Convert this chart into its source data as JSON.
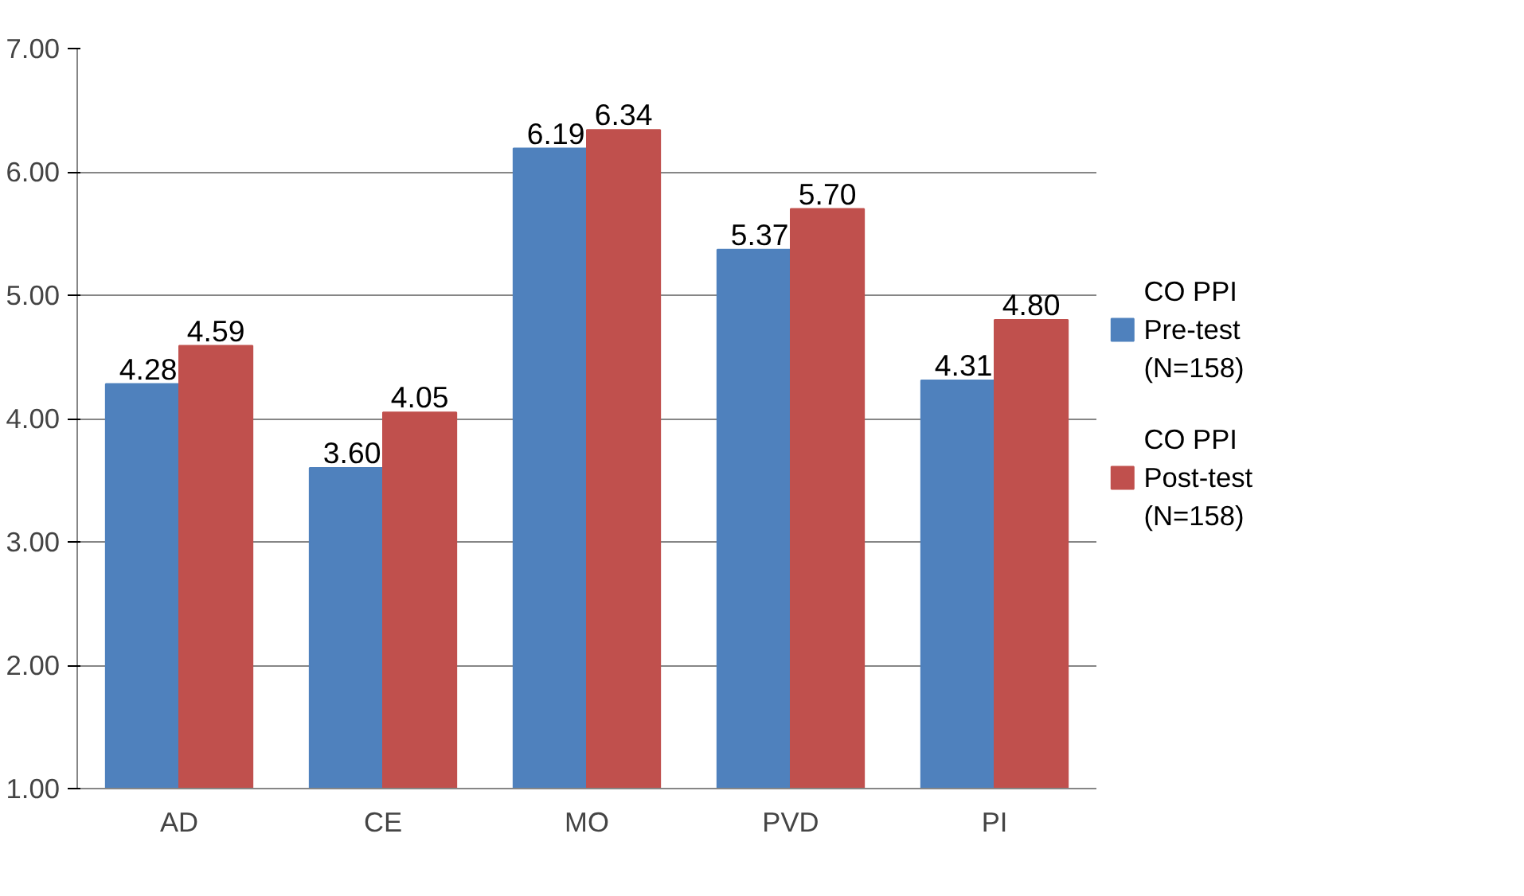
{
  "chart_data": {
    "type": "bar",
    "categories": [
      "AD",
      "CE",
      "MO",
      "PVD",
      "PI"
    ],
    "series": [
      {
        "name": "CO PPI Pre-test (N=158)",
        "color": "#4f81bd",
        "values": [
          4.28,
          3.6,
          6.19,
          5.37,
          4.31
        ],
        "value_labels": [
          "4.28",
          "3.60",
          "6.19",
          "5.37",
          "4.31"
        ]
      },
      {
        "name": "CO PPI Post-test (N=158)",
        "color": "#c0504d",
        "values": [
          4.59,
          4.05,
          6.34,
          5.7,
          4.8
        ],
        "value_labels": [
          "4.59",
          "4.05",
          "6.34",
          "5.70",
          "4.80"
        ]
      }
    ],
    "ylim": [
      1,
      7
    ],
    "yticks": [
      {
        "value": 1,
        "label": "1.00"
      },
      {
        "value": 2,
        "label": "2.00"
      },
      {
        "value": 3,
        "label": "3.00"
      },
      {
        "value": 4,
        "label": "4.00"
      },
      {
        "value": 5,
        "label": "5.00"
      },
      {
        "value": 6,
        "label": "6.00"
      },
      {
        "value": 7,
        "label": "7.00"
      }
    ],
    "grid": "y",
    "legend": "right"
  }
}
